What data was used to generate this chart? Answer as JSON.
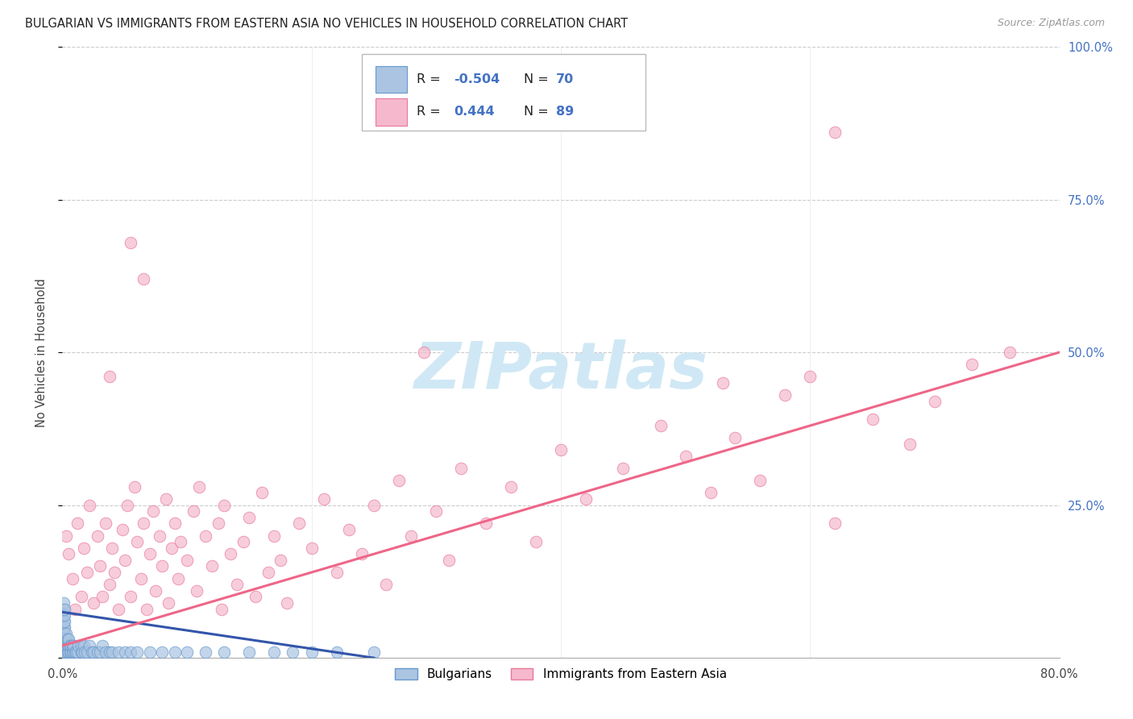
{
  "title": "BULGARIAN VS IMMIGRANTS FROM EASTERN ASIA NO VEHICLES IN HOUSEHOLD CORRELATION CHART",
  "source": "Source: ZipAtlas.com",
  "ylabel": "No Vehicles in Household",
  "xlim": [
    0.0,
    0.8
  ],
  "ylim": [
    0.0,
    1.0
  ],
  "legend_labels": [
    "Bulgarians",
    "Immigrants from Eastern Asia"
  ],
  "R_bulgarian": -0.504,
  "N_bulgarian": 70,
  "R_eastern_asia": 0.444,
  "N_eastern_asia": 89,
  "bulgarian_color": "#aac4e2",
  "bulgarian_edge_color": "#6699cc",
  "eastern_asia_color": "#f5b8cc",
  "eastern_asia_edge_color": "#e87898",
  "bulgarian_line_color": "#3355aa",
  "eastern_asia_line_color": "#ee6688",
  "watermark_color": "#d0e8f5",
  "bg_color": "#ffffff",
  "grid_color": "#cccccc",
  "bulgarian_scatter_x": [
    0.001,
    0.001,
    0.001,
    0.001,
    0.001,
    0.001,
    0.001,
    0.001,
    0.001,
    0.002,
    0.002,
    0.002,
    0.002,
    0.002,
    0.002,
    0.002,
    0.002,
    0.003,
    0.003,
    0.003,
    0.003,
    0.004,
    0.004,
    0.004,
    0.005,
    0.005,
    0.005,
    0.006,
    0.006,
    0.007,
    0.007,
    0.008,
    0.008,
    0.009,
    0.009,
    0.01,
    0.011,
    0.012,
    0.013,
    0.015,
    0.015,
    0.016,
    0.017,
    0.018,
    0.02,
    0.022,
    0.024,
    0.025,
    0.028,
    0.03,
    0.032,
    0.035,
    0.038,
    0.04,
    0.045,
    0.05,
    0.055,
    0.06,
    0.07,
    0.08,
    0.09,
    0.1,
    0.115,
    0.13,
    0.15,
    0.17,
    0.185,
    0.2,
    0.22,
    0.25
  ],
  "bulgarian_scatter_y": [
    0.01,
    0.02,
    0.03,
    0.04,
    0.05,
    0.06,
    0.07,
    0.08,
    0.09,
    0.01,
    0.02,
    0.03,
    0.04,
    0.05,
    0.06,
    0.07,
    0.08,
    0.01,
    0.02,
    0.03,
    0.04,
    0.01,
    0.02,
    0.03,
    0.01,
    0.02,
    0.03,
    0.01,
    0.02,
    0.01,
    0.02,
    0.01,
    0.02,
    0.01,
    0.02,
    0.01,
    0.01,
    0.01,
    0.02,
    0.01,
    0.02,
    0.01,
    0.02,
    0.01,
    0.01,
    0.02,
    0.01,
    0.01,
    0.01,
    0.01,
    0.02,
    0.01,
    0.01,
    0.01,
    0.01,
    0.01,
    0.01,
    0.01,
    0.01,
    0.01,
    0.01,
    0.01,
    0.01,
    0.01,
    0.01,
    0.01,
    0.01,
    0.01,
    0.01,
    0.01
  ],
  "eastern_asia_scatter_x": [
    0.003,
    0.005,
    0.008,
    0.01,
    0.012,
    0.015,
    0.017,
    0.02,
    0.022,
    0.025,
    0.028,
    0.03,
    0.032,
    0.035,
    0.038,
    0.04,
    0.042,
    0.045,
    0.048,
    0.05,
    0.052,
    0.055,
    0.058,
    0.06,
    0.063,
    0.065,
    0.068,
    0.07,
    0.073,
    0.075,
    0.078,
    0.08,
    0.083,
    0.085,
    0.088,
    0.09,
    0.093,
    0.095,
    0.1,
    0.105,
    0.108,
    0.11,
    0.115,
    0.12,
    0.125,
    0.128,
    0.13,
    0.135,
    0.14,
    0.145,
    0.15,
    0.155,
    0.16,
    0.165,
    0.17,
    0.175,
    0.18,
    0.19,
    0.2,
    0.21,
    0.22,
    0.23,
    0.24,
    0.25,
    0.26,
    0.27,
    0.28,
    0.3,
    0.31,
    0.32,
    0.34,
    0.36,
    0.38,
    0.4,
    0.42,
    0.45,
    0.48,
    0.5,
    0.52,
    0.54,
    0.56,
    0.58,
    0.6,
    0.62,
    0.65,
    0.68,
    0.7,
    0.73,
    0.76
  ],
  "eastern_asia_scatter_y": [
    0.2,
    0.17,
    0.13,
    0.08,
    0.22,
    0.1,
    0.18,
    0.14,
    0.25,
    0.09,
    0.2,
    0.15,
    0.1,
    0.22,
    0.12,
    0.18,
    0.14,
    0.08,
    0.21,
    0.16,
    0.25,
    0.1,
    0.28,
    0.19,
    0.13,
    0.22,
    0.08,
    0.17,
    0.24,
    0.11,
    0.2,
    0.15,
    0.26,
    0.09,
    0.18,
    0.22,
    0.13,
    0.19,
    0.16,
    0.24,
    0.11,
    0.28,
    0.2,
    0.15,
    0.22,
    0.08,
    0.25,
    0.17,
    0.12,
    0.19,
    0.23,
    0.1,
    0.27,
    0.14,
    0.2,
    0.16,
    0.09,
    0.22,
    0.18,
    0.26,
    0.14,
    0.21,
    0.17,
    0.25,
    0.12,
    0.29,
    0.2,
    0.24,
    0.16,
    0.31,
    0.22,
    0.28,
    0.19,
    0.34,
    0.26,
    0.31,
    0.38,
    0.33,
    0.27,
    0.36,
    0.29,
    0.43,
    0.46,
    0.22,
    0.39,
    0.35,
    0.42,
    0.48,
    0.5
  ],
  "extra_pink_high": [
    [
      0.038,
      0.46
    ],
    [
      0.055,
      0.68
    ],
    [
      0.065,
      0.62
    ],
    [
      0.29,
      0.5
    ],
    [
      0.53,
      0.45
    ],
    [
      0.62,
      0.86
    ]
  ],
  "bulgarian_trendline_x": [
    0.0,
    0.25
  ],
  "bulgarian_trendline_y": [
    0.075,
    0.0
  ],
  "eastern_asia_trendline_x": [
    0.0,
    0.8
  ],
  "eastern_asia_trendline_y": [
    0.02,
    0.5
  ]
}
